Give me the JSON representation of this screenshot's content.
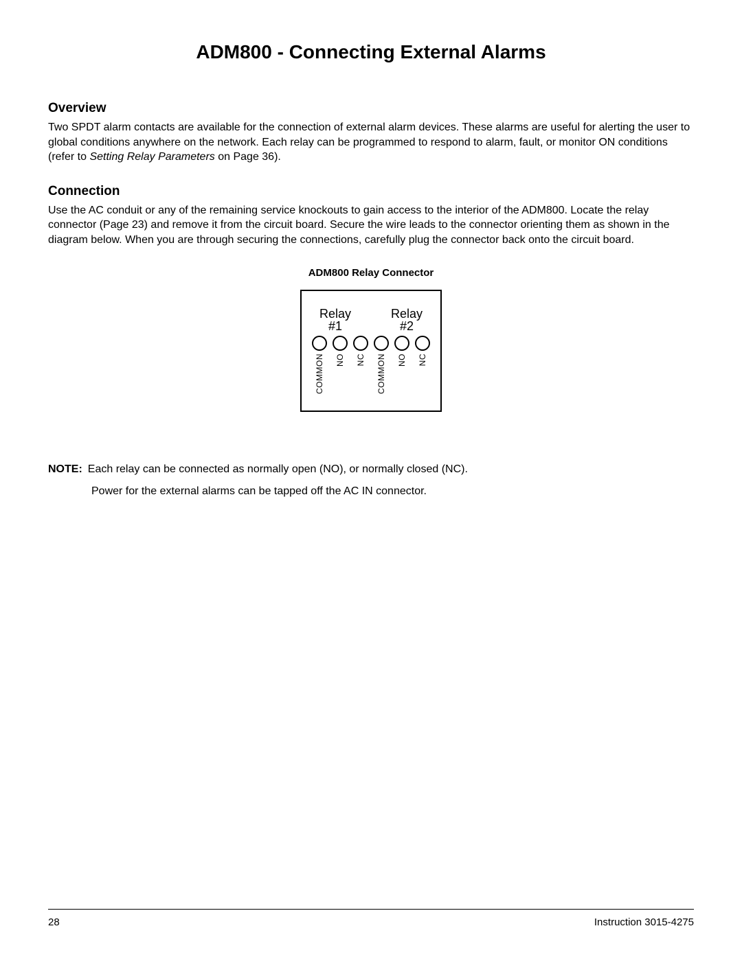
{
  "title": "ADM800 - Connecting External Alarms",
  "overview": {
    "heading": "Overview",
    "text_before_italic": "Two SPDT alarm contacts are available for the connection of external alarm devices. These alarms are useful for alerting the user to global conditions anywhere on the network. Each relay can be programmed to respond to alarm, fault, or monitor ON conditions (refer to ",
    "italic": "Setting Relay Parameters",
    "text_after_italic": " on Page 36)."
  },
  "connection": {
    "heading": "Connection",
    "text": "Use the AC conduit or any of the remaining service knockouts to gain access to the interior of the ADM800. Locate the relay connector (Page 23) and remove it from the circuit board. Secure the wire leads to the connector orienting them as shown in the diagram below. When you are through securing the connections, carefully plug the connector back onto the circuit board."
  },
  "diagram": {
    "caption": "ADM800 Relay Connector",
    "relay1_line1": "Relay",
    "relay1_line2": "#1",
    "relay2_line1": "Relay",
    "relay2_line2": "#2",
    "terminals": [
      "COMMON",
      "NO",
      "NC",
      "COMMON",
      "NO",
      "NC"
    ]
  },
  "note": {
    "label": "NOTE:",
    "line1": "Each relay can be connected as normally open (NO), or normally closed (NC).",
    "line2": "Power for the external alarms can be tapped off the AC IN connector."
  },
  "footer": {
    "page": "28",
    "doc": "Instruction 3015-4275"
  }
}
